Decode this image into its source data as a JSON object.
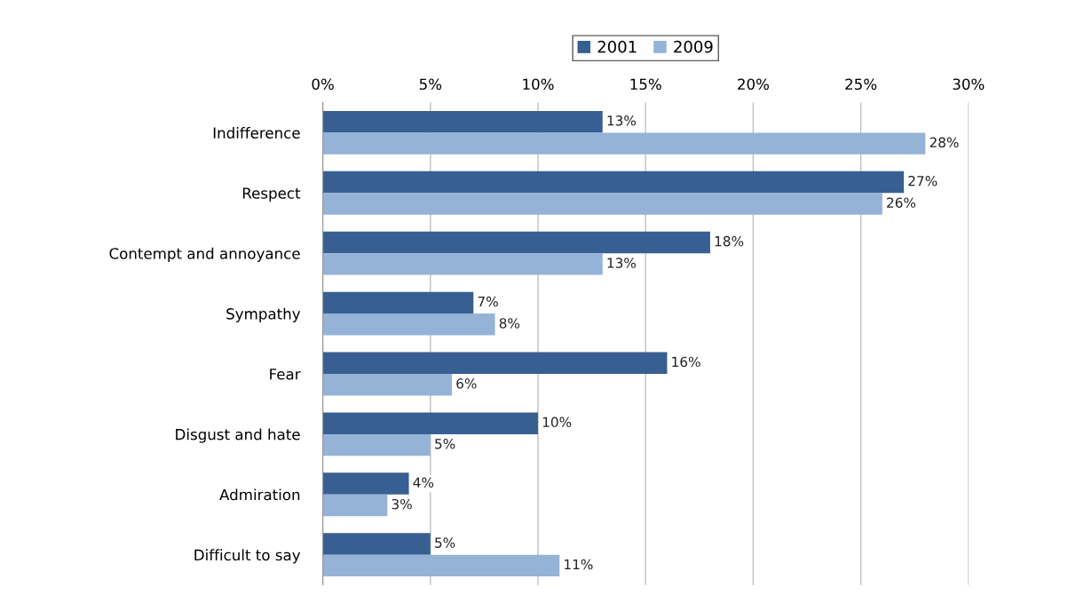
{
  "chart_data": {
    "type": "bar",
    "orientation": "horizontal",
    "categories": [
      "Indifference",
      "Respect",
      "Contempt and annoyance",
      "Sympathy",
      "Fear",
      "Disgust and hate",
      "Admiration",
      "Difficult to say"
    ],
    "series": [
      {
        "name": "2001",
        "color": "#375f92",
        "values": [
          13,
          27,
          18,
          7,
          16,
          10,
          4,
          5
        ],
        "value_labels": [
          "13%",
          "27%",
          "18%",
          "7%",
          "16%",
          "10%",
          "4%",
          "5%"
        ]
      },
      {
        "name": "2009",
        "color": "#95b3d7",
        "values": [
          28,
          26,
          13,
          8,
          6,
          5,
          3,
          11
        ],
        "value_labels": [
          "28%",
          "26%",
          "13%",
          "8%",
          "6%",
          "5%",
          "3%",
          "11%"
        ]
      }
    ],
    "xlim": [
      0,
      30
    ],
    "xticks": [
      {
        "value": 0,
        "label": "0%"
      },
      {
        "value": 5,
        "label": "5%"
      },
      {
        "value": 10,
        "label": "10%"
      },
      {
        "value": 15,
        "label": "15%"
      },
      {
        "value": 20,
        "label": "20%"
      },
      {
        "value": 25,
        "label": "25%"
      },
      {
        "value": 30,
        "label": "30%"
      }
    ],
    "grid": "x",
    "legend": "top"
  }
}
